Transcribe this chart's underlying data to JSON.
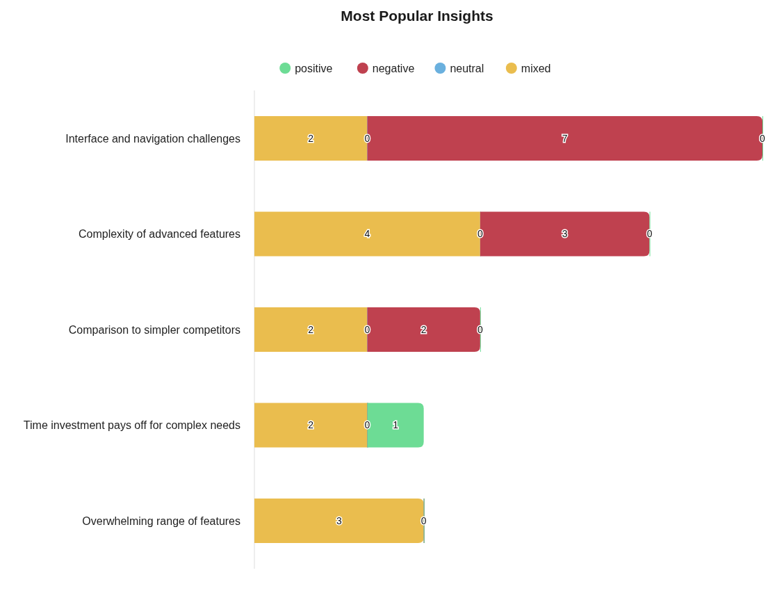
{
  "chart_data": {
    "type": "bar",
    "title": "Most Popular Insights",
    "orientation": "horizontal",
    "stacked": true,
    "legend": "top",
    "relative": false,
    "categories": [
      "Interface and navigation challenges",
      "Complexity of advanced features",
      "Comparison to simpler competitors",
      "Time investment pays off for complex needs",
      "Overwhelming range of features"
    ],
    "series": [
      {
        "name": "mixed",
        "color": "#eabd4e",
        "values": [
          2,
          4,
          2,
          2,
          3
        ],
        "value_labels": [
          "2",
          "4",
          "2",
          "2",
          "3"
        ]
      },
      {
        "name": "neutral",
        "color": "#6ab0de",
        "values": [
          0,
          0,
          0,
          0,
          0
        ],
        "value_labels": [
          "0",
          "0",
          "0",
          "0",
          "0"
        ]
      },
      {
        "name": "negative",
        "color": "#bf414f",
        "values": [
          7,
          3,
          2,
          0,
          0
        ],
        "value_labels": [
          "7",
          "3",
          "2",
          null,
          null
        ]
      },
      {
        "name": "positive",
        "color": "#6ddc95",
        "values": [
          0,
          0,
          0,
          1,
          0
        ],
        "value_labels": [
          "0",
          "0",
          "0",
          "1",
          null
        ]
      }
    ]
  }
}
